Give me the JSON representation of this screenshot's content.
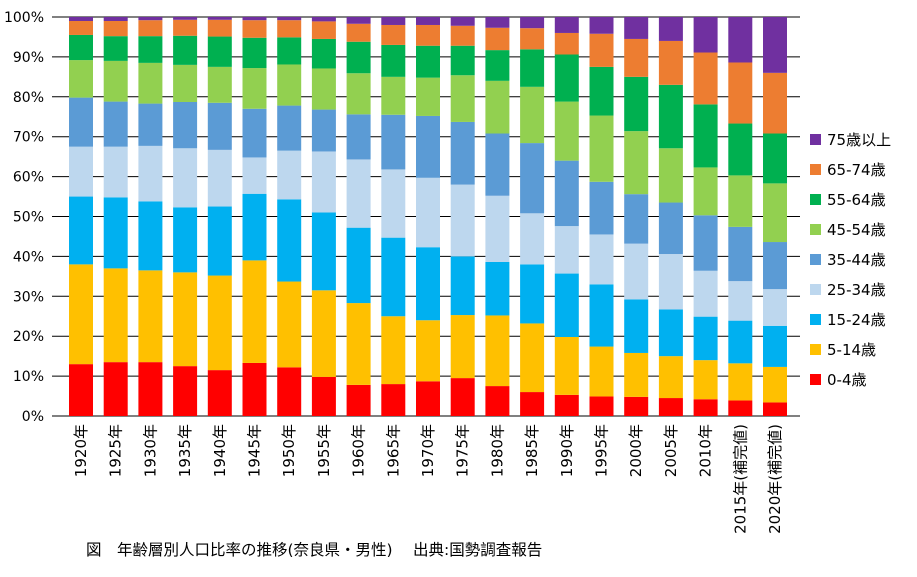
{
  "chart_data": {
    "type": "bar",
    "stacked": true,
    "categories": [
      "1920年",
      "1925年",
      "1930年",
      "1935年",
      "1940年",
      "1945年",
      "1950年",
      "1955年",
      "1960年",
      "1965年",
      "1970年",
      "1975年",
      "1980年",
      "1985年",
      "1990年",
      "1995年",
      "2000年",
      "2005年",
      "2010年",
      "2015年(補完値)",
      "2020年(補完値)"
    ],
    "ylim": [
      0,
      100
    ],
    "yticks": [
      "0%",
      "10%",
      "20%",
      "30%",
      "40%",
      "50%",
      "60%",
      "70%",
      "80%",
      "90%",
      "100%"
    ],
    "grid": true,
    "legend_position": "right",
    "series": [
      {
        "name": "0-4歳",
        "color": "#ff0000",
        "values": [
          13.0,
          13.5,
          13.5,
          12.5,
          11.5,
          13.3,
          12.2,
          9.8,
          7.8,
          8.0,
          8.7,
          9.5,
          7.5,
          6.0,
          5.3,
          4.9,
          4.8,
          4.5,
          4.2,
          3.9,
          3.4
        ]
      },
      {
        "name": "5-14歳",
        "color": "#ffc000",
        "values": [
          25.0,
          23.5,
          23.0,
          23.5,
          23.7,
          25.7,
          21.5,
          21.7,
          20.5,
          17.0,
          15.3,
          15.8,
          17.7,
          17.2,
          14.5,
          12.5,
          11.0,
          10.5,
          9.8,
          9.3,
          8.9
        ]
      },
      {
        "name": "15-24歳",
        "color": "#00b0f0",
        "values": [
          17.0,
          17.8,
          17.3,
          16.3,
          17.3,
          16.7,
          20.6,
          19.5,
          18.9,
          19.7,
          18.3,
          14.7,
          13.4,
          14.8,
          15.9,
          15.6,
          13.4,
          11.7,
          10.9,
          10.7,
          10.3
        ]
      },
      {
        "name": "25-34歳",
        "color": "#bdd7ee",
        "values": [
          12.5,
          12.7,
          13.9,
          14.8,
          14.2,
          9.1,
          12.2,
          15.3,
          17.1,
          17.1,
          17.4,
          18.0,
          16.6,
          12.8,
          11.9,
          12.5,
          14.0,
          13.9,
          11.5,
          9.9,
          9.2
        ]
      },
      {
        "name": "35-44歳",
        "color": "#5b9bd5",
        "values": [
          12.3,
          11.3,
          10.6,
          11.6,
          11.8,
          12.2,
          11.3,
          10.5,
          11.3,
          13.7,
          15.5,
          15.7,
          15.6,
          17.6,
          16.4,
          13.2,
          12.4,
          12.9,
          13.9,
          13.6,
          11.8
        ]
      },
      {
        "name": "45-54歳",
        "color": "#92d050",
        "values": [
          9.4,
          10.2,
          10.2,
          9.3,
          9.0,
          10.2,
          10.3,
          10.3,
          10.3,
          9.5,
          9.6,
          11.7,
          13.2,
          14.1,
          14.8,
          16.6,
          15.8,
          13.6,
          12.0,
          12.9,
          14.7
        ]
      },
      {
        "name": "55-64歳",
        "color": "#00b050",
        "values": [
          6.3,
          6.2,
          6.7,
          7.3,
          7.6,
          7.6,
          6.8,
          7.4,
          7.9,
          8.0,
          8.0,
          7.4,
          7.7,
          9.4,
          11.8,
          12.2,
          13.6,
          15.9,
          15.8,
          13.0,
          12.5
        ]
      },
      {
        "name": "65-74歳",
        "color": "#ed7d31",
        "values": [
          3.5,
          3.8,
          4.0,
          4.0,
          4.2,
          4.4,
          4.3,
          4.4,
          4.5,
          5.0,
          5.2,
          5.0,
          5.6,
          5.3,
          5.4,
          8.3,
          9.5,
          11.0,
          13.0,
          15.3,
          15.2
        ]
      },
      {
        "name": "75歳以上",
        "color": "#7030a0",
        "values": [
          1.0,
          1.0,
          0.8,
          0.7,
          0.7,
          0.8,
          0.8,
          1.1,
          1.7,
          2.0,
          2.0,
          2.2,
          2.7,
          2.8,
          4.0,
          4.2,
          5.5,
          6.0,
          8.9,
          11.4,
          14.0
        ]
      }
    ]
  },
  "caption": "図　年齢層別人口比率の推移(奈良県・男性)　 出典:国勢調査報告"
}
